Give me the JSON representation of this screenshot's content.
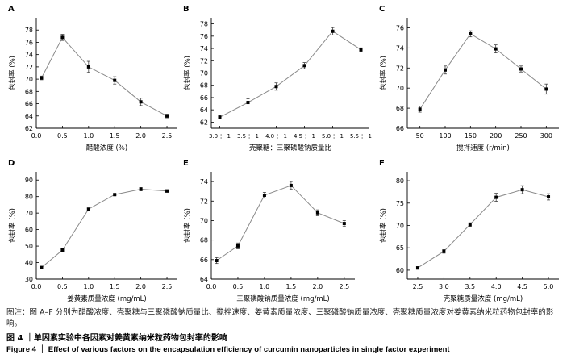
{
  "chart_data": [
    {
      "letter": "A",
      "type": "line",
      "xlabel": "醋酸浓度 (%)",
      "ylabel": "包封率 (%)",
      "x": [
        0.1,
        0.5,
        1.0,
        1.5,
        2.0,
        2.5
      ],
      "y": [
        70.2,
        76.8,
        72.0,
        69.8,
        66.3,
        64.0
      ],
      "err": [
        0.3,
        0.5,
        0.9,
        0.6,
        0.6,
        0.3
      ],
      "xlim": [
        0.0,
        2.7
      ],
      "ylim": [
        62,
        80
      ],
      "xticks": [
        0.0,
        0.5,
        1.0,
        1.5,
        2.0,
        2.5
      ],
      "xtick_labels": [
        "0.0",
        "0.5",
        "1.0",
        "1.5",
        "2.0",
        "2.5"
      ],
      "yticks": [
        62,
        64,
        66,
        68,
        70,
        72,
        74,
        76,
        78
      ],
      "grid": false
    },
    {
      "letter": "B",
      "type": "line",
      "xlabel": "壳聚糖：三聚磷酸钠质量比",
      "ylabel": "包封率 (%)",
      "x": [
        0,
        1,
        2,
        3,
        4,
        5
      ],
      "y": [
        62.8,
        65.2,
        67.8,
        71.2,
        76.8,
        73.8
      ],
      "err": [
        0.3,
        0.6,
        0.6,
        0.5,
        0.6,
        0.3
      ],
      "xlim": [
        -0.3,
        5.3
      ],
      "ylim": [
        61,
        79
      ],
      "xticks": [
        0,
        1,
        2,
        3,
        4,
        5
      ],
      "xtick_labels": [
        "3.0 ： 1",
        "3.5 ： 1",
        "4.0 ： 1",
        "4.5 ： 1",
        "5.0 ： 1",
        "5.5 ： 1"
      ],
      "yticks": [
        62,
        64,
        66,
        68,
        70,
        72,
        74,
        76,
        78
      ],
      "grid": false
    },
    {
      "letter": "C",
      "type": "line",
      "xlabel": "搅拌速度 (r/min)",
      "ylabel": "包封率 (%)",
      "x": [
        50,
        100,
        150,
        200,
        250,
        300
      ],
      "y": [
        67.9,
        71.8,
        75.4,
        73.9,
        71.9,
        69.9
      ],
      "err": [
        0.3,
        0.4,
        0.3,
        0.4,
        0.3,
        0.5
      ],
      "xlim": [
        25,
        325
      ],
      "ylim": [
        66,
        77
      ],
      "xticks": [
        50,
        100,
        150,
        200,
        250,
        300
      ],
      "xtick_labels": [
        "50",
        "100",
        "150",
        "200",
        "250",
        "300"
      ],
      "yticks": [
        66,
        68,
        70,
        72,
        74,
        76
      ],
      "grid": false
    },
    {
      "letter": "D",
      "type": "line",
      "xlabel": "姜黄素质量浓度 (mg/mL)",
      "ylabel": "包封率 (%)",
      "x": [
        0.1,
        0.5,
        1.0,
        1.5,
        2.0,
        2.5
      ],
      "y": [
        37.0,
        47.6,
        72.4,
        81.2,
        84.5,
        83.4
      ],
      "err": [
        0.8,
        1.0,
        0.6,
        0.5,
        1.0,
        0.8
      ],
      "xlim": [
        0.0,
        2.7
      ],
      "ylim": [
        30,
        95
      ],
      "xticks": [
        0.0,
        0.5,
        1.0,
        1.5,
        2.0,
        2.5
      ],
      "xtick_labels": [
        "0.0",
        "0.5",
        "1.0",
        "1.5",
        "2.0",
        "2.5"
      ],
      "yticks": [
        30,
        40,
        50,
        60,
        70,
        80,
        90
      ],
      "grid": false
    },
    {
      "letter": "E",
      "type": "line",
      "xlabel": "三聚磷酸钠质量浓度 (mg/mL)",
      "ylabel": "包封率 (%)",
      "x": [
        0.1,
        0.5,
        1.0,
        1.5,
        2.0,
        2.5
      ],
      "y": [
        65.9,
        67.4,
        72.6,
        73.6,
        70.8,
        69.7
      ],
      "err": [
        0.3,
        0.3,
        0.3,
        0.4,
        0.3,
        0.3
      ],
      "xlim": [
        0.0,
        2.7
      ],
      "ylim": [
        64,
        75
      ],
      "xticks": [
        0.0,
        0.5,
        1.0,
        1.5,
        2.0,
        2.5
      ],
      "xtick_labels": [
        "0.0",
        "0.5",
        "1.0",
        "1.5",
        "2.0",
        "2.5"
      ],
      "yticks": [
        64,
        66,
        68,
        70,
        72,
        74
      ],
      "grid": false
    },
    {
      "letter": "F",
      "type": "line",
      "xlabel": "壳聚糖质量浓度 (mg/mL)",
      "ylabel": "包封率 (%)",
      "x": [
        2.5,
        3.0,
        3.5,
        4.0,
        4.5,
        5.0
      ],
      "y": [
        60.5,
        64.2,
        70.2,
        76.3,
        78.0,
        76.4
      ],
      "err": [
        0.3,
        0.4,
        0.4,
        0.9,
        0.9,
        0.7
      ],
      "xlim": [
        2.3,
        5.2
      ],
      "ylim": [
        58,
        82
      ],
      "xticks": [
        2.5,
        3.0,
        3.5,
        4.0,
        4.5,
        5.0
      ],
      "xtick_labels": [
        "2.5",
        "3.0",
        "3.5",
        "4.0",
        "4.5",
        "5.0"
      ],
      "yticks": [
        60,
        65,
        70,
        75,
        80
      ],
      "grid": false
    }
  ],
  "caption": {
    "note": "图注：图 A–F 分别为醋酸浓度、壳聚糖与三聚磷酸钠质量比、搅拌速度、姜黄素质量浓度、三聚磷酸钠质量浓度、壳聚糖质量浓度对姜黄素纳米粒药物包封率的影响。",
    "cn": "图 4 ｜单因素实验中各因素对姜黄素纳米粒药物包封率的影响",
    "en": "Figure 4 ｜ Effect of various factors on the encapsulation efficiency of curcumin nanoparticles in single factor experiment"
  },
  "colors": {
    "line": "#8a8a8a",
    "marker": "#000000",
    "axis": "#000000"
  }
}
